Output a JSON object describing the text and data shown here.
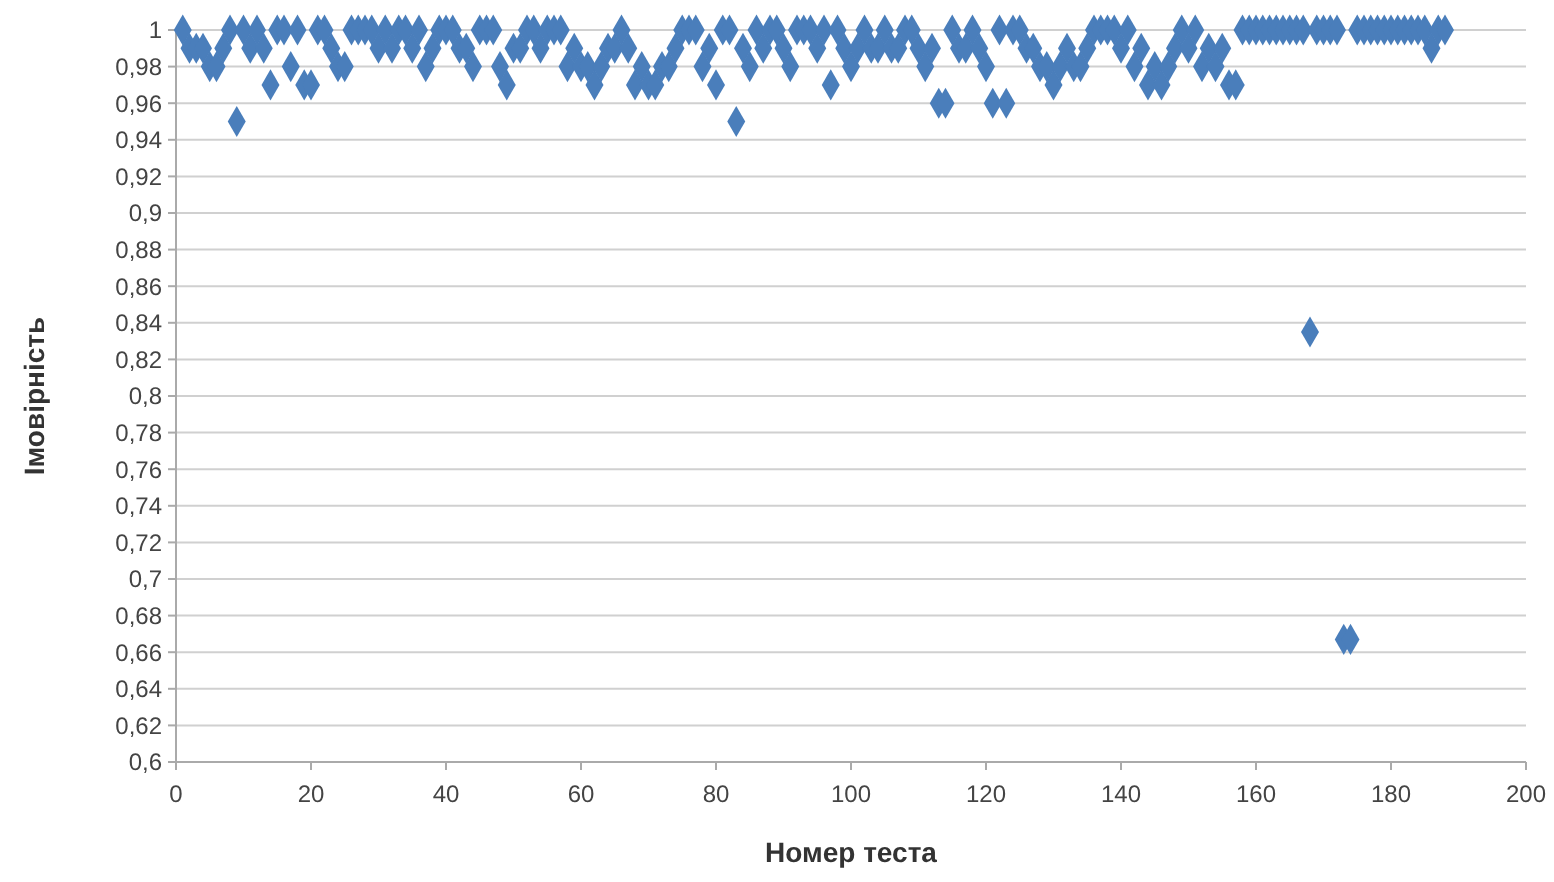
{
  "chart_data": {
    "type": "scatter",
    "xlabel": "Номер теста",
    "ylabel": "Імовірність",
    "marker": "diamond",
    "grid": "y",
    "xlim": [
      0,
      200
    ],
    "xticks": [
      0,
      20,
      40,
      60,
      80,
      100,
      120,
      140,
      160,
      180,
      200
    ],
    "ylim": [
      0.6,
      1
    ],
    "yticks": [
      {
        "value": 0.6,
        "label": "0,6"
      },
      {
        "value": 0.62,
        "label": "0,62"
      },
      {
        "value": 0.64,
        "label": "0,64"
      },
      {
        "value": 0.66,
        "label": "0,66"
      },
      {
        "value": 0.68,
        "label": "0,68"
      },
      {
        "value": 0.7,
        "label": "0,7"
      },
      {
        "value": 0.72,
        "label": "0,72"
      },
      {
        "value": 0.74,
        "label": "0,74"
      },
      {
        "value": 0.76,
        "label": "0,76"
      },
      {
        "value": 0.78,
        "label": "0,78"
      },
      {
        "value": 0.8,
        "label": "0,8"
      },
      {
        "value": 0.82,
        "label": "0,82"
      },
      {
        "value": 0.84,
        "label": "0,84"
      },
      {
        "value": 0.86,
        "label": "0,86"
      },
      {
        "value": 0.88,
        "label": "0,88"
      },
      {
        "value": 0.9,
        "label": "0,9"
      },
      {
        "value": 0.92,
        "label": "0,92"
      },
      {
        "value": 0.94,
        "label": "0,94"
      },
      {
        "value": 0.96,
        "label": "0,96"
      },
      {
        "value": 0.98,
        "label": "0,98"
      },
      {
        "value": 1,
        "label": "1"
      }
    ],
    "series": [
      {
        "color": "#4a7ebb",
        "x": [
          1,
          2,
          3,
          4,
          5,
          6,
          7,
          8,
          9,
          10,
          11,
          12,
          13,
          14,
          15,
          16,
          17,
          18,
          19,
          20,
          21,
          22,
          23,
          24,
          25,
          26,
          27,
          28,
          29,
          30,
          31,
          32,
          33,
          34,
          35,
          36,
          37,
          38,
          39,
          40,
          41,
          42,
          43,
          44,
          45,
          46,
          47,
          48,
          49,
          50,
          51,
          52,
          53,
          54,
          55,
          56,
          57,
          58,
          59,
          60,
          61,
          62,
          63,
          64,
          65,
          66,
          67,
          68,
          69,
          70,
          71,
          72,
          73,
          74,
          75,
          76,
          77,
          78,
          79,
          80,
          81,
          82,
          83,
          84,
          85,
          86,
          87,
          88,
          89,
          90,
          91,
          92,
          93,
          94,
          95,
          96,
          97,
          98,
          99,
          100,
          101,
          102,
          103,
          104,
          105,
          106,
          107,
          108,
          109,
          110,
          111,
          112,
          113,
          114,
          115,
          116,
          117,
          118,
          119,
          120,
          121,
          122,
          123,
          124,
          125,
          126,
          127,
          128,
          129,
          130,
          131,
          132,
          133,
          134,
          135,
          136,
          137,
          138,
          139,
          140,
          141,
          142,
          143,
          144,
          145,
          146,
          147,
          148,
          149,
          150,
          151,
          152,
          153,
          154,
          155,
          156,
          157,
          158,
          159,
          160,
          161,
          162,
          163,
          164,
          165,
          166,
          167,
          168,
          169,
          170,
          171,
          172,
          173,
          174,
          175,
          176,
          177,
          178,
          179,
          180,
          181,
          182,
          183,
          184,
          185,
          186,
          187,
          188
        ],
        "values": [
          1,
          0.99,
          0.99,
          0.99,
          0.98,
          0.98,
          0.99,
          1,
          0.95,
          1,
          0.99,
          1,
          0.99,
          0.97,
          1,
          1,
          0.98,
          1,
          0.97,
          0.97,
          1,
          1,
          0.99,
          0.98,
          0.98,
          1,
          1,
          1,
          1,
          0.99,
          1,
          0.99,
          1,
          1,
          0.99,
          1,
          0.98,
          0.99,
          1,
          1,
          1,
          0.99,
          0.99,
          0.98,
          1,
          1,
          1,
          0.98,
          0.97,
          0.99,
          0.99,
          1,
          1,
          0.99,
          1,
          1,
          1,
          0.98,
          0.99,
          0.98,
          0.98,
          0.97,
          0.98,
          0.99,
          0.99,
          1,
          0.99,
          0.97,
          0.98,
          0.97,
          0.97,
          0.98,
          0.98,
          0.99,
          1,
          1,
          1,
          0.98,
          0.99,
          0.97,
          1,
          1,
          0.95,
          0.99,
          0.98,
          1,
          0.99,
          1,
          1,
          0.99,
          0.98,
          1,
          1,
          1,
          0.99,
          1,
          0.97,
          1,
          0.99,
          0.98,
          0.99,
          1,
          0.99,
          0.99,
          1,
          0.99,
          0.99,
          1,
          1,
          0.99,
          0.98,
          0.99,
          0.96,
          0.96,
          1,
          0.99,
          0.99,
          1,
          0.99,
          0.98,
          0.96,
          1,
          0.96,
          1,
          1,
          0.99,
          0.99,
          0.98,
          0.98,
          0.97,
          0.98,
          0.99,
          0.98,
          0.98,
          0.99,
          1,
          1,
          1,
          1,
          0.99,
          1,
          0.98,
          0.99,
          0.97,
          0.98,
          0.97,
          0.98,
          0.99,
          1,
          0.99,
          1,
          0.98,
          0.99,
          0.98,
          0.99,
          0.97,
          0.97,
          1,
          1,
          1,
          1,
          1,
          1,
          1,
          1,
          1,
          1,
          0.835,
          1,
          1,
          1,
          1,
          0.667,
          0.667,
          1,
          1,
          1,
          1,
          1,
          1,
          1,
          1,
          1,
          1,
          1,
          0.99,
          1,
          1
        ]
      }
    ]
  }
}
